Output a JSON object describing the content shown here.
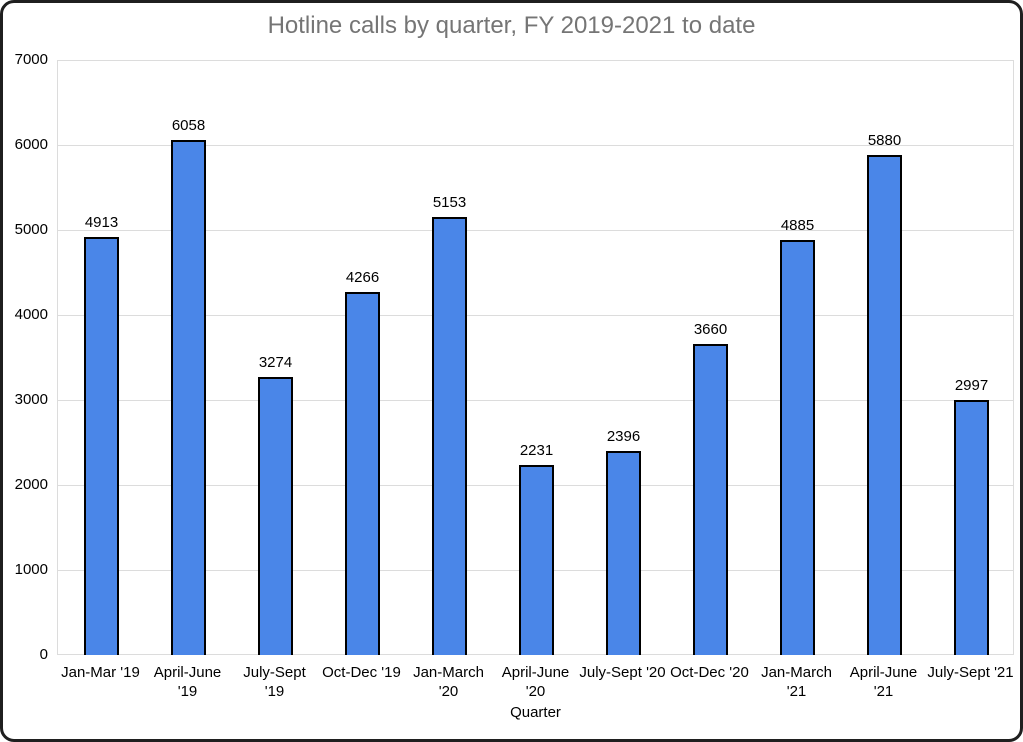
{
  "chart_data": {
    "type": "bar",
    "title": "Hotline calls by quarter, FY 2019-2021 to date",
    "xlabel": "Quarter",
    "ylabel": "",
    "categories": [
      "Jan-Mar '19",
      "April-June '19",
      "July-Sept '19",
      "Oct-Dec '19",
      "Jan-March '20",
      "April-June '20",
      "July-Sept '20",
      "Oct-Dec '20",
      "Jan-March '21",
      "April-June '21",
      "July-Sept '21"
    ],
    "category_lines": [
      [
        "Jan-Mar '19"
      ],
      [
        "April-June",
        "'19"
      ],
      [
        "July-Sept",
        "'19"
      ],
      [
        "Oct-Dec '19"
      ],
      [
        "Jan-March",
        "'20"
      ],
      [
        "April-June",
        "'20"
      ],
      [
        "July-Sept '20"
      ],
      [
        "Oct-Dec '20"
      ],
      [
        "Jan-March",
        "'21"
      ],
      [
        "April-June",
        "'21"
      ],
      [
        "July-Sept '21"
      ]
    ],
    "values": [
      4913,
      6058,
      3274,
      4266,
      5153,
      2231,
      2396,
      3660,
      4885,
      5880,
      2997
    ],
    "ylim": [
      0,
      7000
    ],
    "yticks": [
      0,
      1000,
      2000,
      3000,
      4000,
      5000,
      6000,
      7000
    ],
    "grid": "horizontal",
    "legend": "none",
    "show_value_labels": true,
    "colors": {
      "bar_fill": "#4a86e8",
      "bar_border": "#000000",
      "gridline": "#dcdcdc",
      "title_text": "#757575",
      "axis_text": "#000000",
      "background": "#ffffff",
      "frame_border": "#1f1f1f"
    }
  }
}
